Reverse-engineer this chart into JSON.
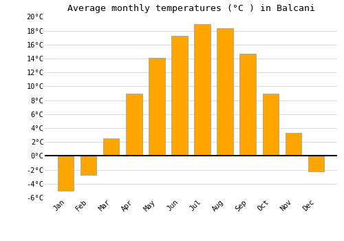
{
  "title": "Average monthly temperatures (°C ) in Balcani",
  "months": [
    "Jan",
    "Feb",
    "Mar",
    "Apr",
    "May",
    "Jun",
    "Jul",
    "Aug",
    "Sep",
    "Oct",
    "Nov",
    "Dec"
  ],
  "values": [
    -5.0,
    -2.7,
    2.5,
    9.0,
    14.1,
    17.3,
    19.0,
    18.4,
    14.7,
    9.0,
    3.3,
    -2.2
  ],
  "bar_color": "#FFA500",
  "bar_edge_color": "#999999",
  "ylim": [
    -6,
    20
  ],
  "yticks": [
    -6,
    -4,
    -2,
    0,
    2,
    4,
    6,
    8,
    10,
    12,
    14,
    16,
    18,
    20
  ],
  "ytick_labels": [
    "-6°C",
    "-4°C",
    "-2°C",
    "0°C",
    "2°C",
    "4°C",
    "6°C",
    "8°C",
    "10°C",
    "12°C",
    "14°C",
    "16°C",
    "18°C",
    "20°C"
  ],
  "background_color": "#ffffff",
  "grid_color": "#dddddd",
  "title_fontsize": 9.5,
  "tick_fontsize": 7.5,
  "zero_line_color": "#000000",
  "bar_width": 0.7
}
